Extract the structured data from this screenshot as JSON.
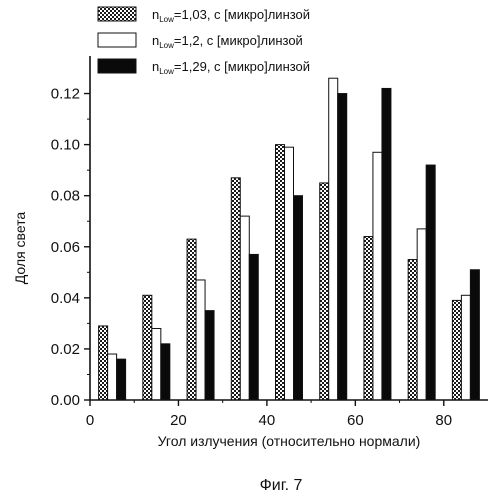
{
  "chart_data": {
    "type": "bar",
    "xlabel": "Угол излучения (относительно нормали)",
    "ylabel": "Доля света",
    "caption": "Фиг. 7",
    "xlim": [
      0,
      90
    ],
    "ylim": [
      0.0,
      0.13
    ],
    "xticks": [
      0,
      20,
      40,
      60,
      80
    ],
    "yticks": [
      0.0,
      0.02,
      0.04,
      0.06,
      0.08,
      0.1,
      0.12
    ],
    "xtick_labels": [
      "0",
      "20",
      "40",
      "60",
      "80"
    ],
    "ytick_labels": [
      "0.00",
      "0.02",
      "0.04",
      "0.06",
      "0.08",
      "0.10",
      "0.12"
    ],
    "x": [
      5,
      15,
      25,
      35,
      45,
      55,
      65,
      75,
      85
    ],
    "series": [
      {
        "legend_prefix": "n",
        "legend_sub": "Low",
        "legend_suffix": "=1,03, с [микро]линзой",
        "fill": "crosshatch",
        "values": [
          0.029,
          0.041,
          0.063,
          0.087,
          0.1,
          0.085,
          0.064,
          0.055,
          0.039
        ]
      },
      {
        "legend_prefix": "n",
        "legend_sub": "Low",
        "legend_suffix": "=1,2, с [микро]линзой",
        "fill": "white",
        "values": [
          0.018,
          0.028,
          0.047,
          0.072,
          0.099,
          0.126,
          0.097,
          0.067,
          0.041
        ]
      },
      {
        "legend_prefix": "n",
        "legend_sub": "Low",
        "legend_suffix": "=1,29, с [микро]линзой",
        "fill": "black",
        "values": [
          0.016,
          0.022,
          0.035,
          0.057,
          0.08,
          0.12,
          0.122,
          0.092,
          0.051
        ]
      }
    ],
    "legend_position": "top",
    "grid": false
  },
  "colors": {
    "axis": "#111111",
    "bar_black": "#0a0a0a",
    "bar_white": "#ffffff",
    "hatch": "#1a1a1a"
  }
}
